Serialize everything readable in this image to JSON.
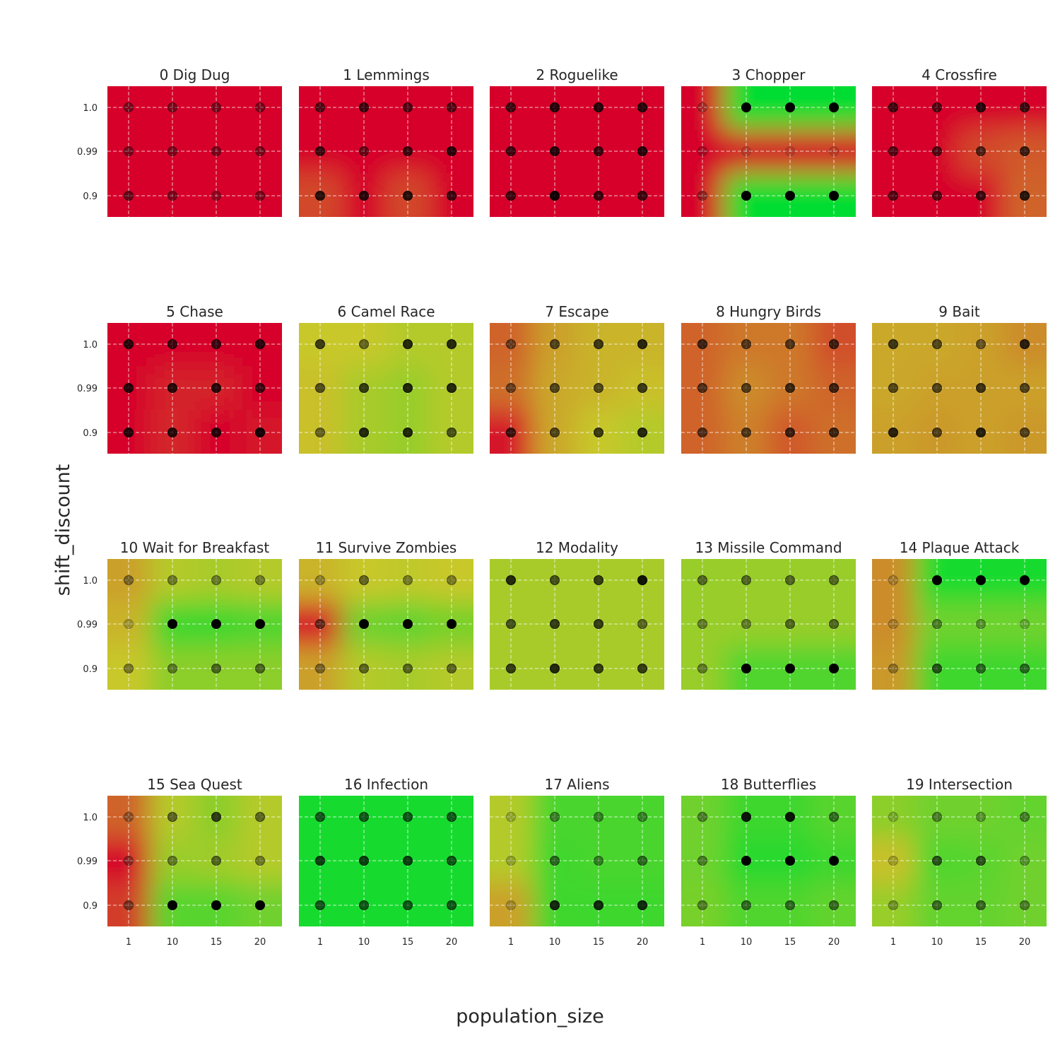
{
  "chart_data": {
    "type": "heatmap",
    "xlabel": "population_size",
    "ylabel": "shift_discount",
    "x_ticks": [
      "1",
      "10",
      "15",
      "20"
    ],
    "y_ticks": [
      "1.0",
      "0.99",
      "0.9"
    ],
    "grid": true,
    "colormap": {
      "low": "#d6002b",
      "mid": "#c8c82a",
      "high": "#00dd30"
    },
    "point_color": "#000000",
    "value_scale": "0 = red (worst) to 1 = green (best)",
    "panels": [
      {
        "title": "0 Dig Dug",
        "values": [
          [
            0.0,
            0.0,
            0.0,
            0.0
          ],
          [
            0.0,
            0.0,
            0.0,
            0.0
          ],
          [
            0.0,
            0.0,
            0.0,
            0.0
          ]
        ],
        "marker_strength": [
          [
            0.4,
            0.4,
            0.4,
            0.4
          ],
          [
            0.4,
            0.4,
            0.4,
            0.4
          ],
          [
            0.5,
            0.4,
            0.3,
            0.4
          ]
        ]
      },
      {
        "title": "1 Lemmings",
        "values": [
          [
            0.0,
            0.0,
            0.0,
            0.0
          ],
          [
            0.0,
            0.0,
            0.0,
            0.0
          ],
          [
            0.18,
            0.0,
            0.18,
            0.0
          ]
        ],
        "marker_strength": [
          [
            0.6,
            0.7,
            0.6,
            0.6
          ],
          [
            0.7,
            0.5,
            0.7,
            0.8
          ],
          [
            0.8,
            0.8,
            0.8,
            0.7
          ]
        ]
      },
      {
        "title": "2 Roguelike",
        "values": [
          [
            0.0,
            0.0,
            0.0,
            0.0
          ],
          [
            0.0,
            0.0,
            0.0,
            0.0
          ],
          [
            0.0,
            0.0,
            0.0,
            0.0
          ]
        ],
        "marker_strength": [
          [
            0.7,
            0.8,
            0.8,
            0.8
          ],
          [
            0.7,
            0.8,
            0.7,
            0.8
          ],
          [
            0.7,
            0.9,
            0.7,
            0.7
          ]
        ]
      },
      {
        "title": "3 Chopper",
        "values": [
          [
            0.0,
            1.0,
            1.0,
            1.0
          ],
          [
            0.0,
            0.0,
            0.0,
            0.0
          ],
          [
            0.0,
            1.0,
            1.0,
            1.0
          ]
        ],
        "marker_strength": [
          [
            0.2,
            1.0,
            1.0,
            1.0
          ],
          [
            0.2,
            0.1,
            0.1,
            0.1
          ],
          [
            0.3,
            1.0,
            1.0,
            1.0
          ]
        ]
      },
      {
        "title": "4 Crossfire",
        "values": [
          [
            0.0,
            0.0,
            0.0,
            0.0
          ],
          [
            0.0,
            0.0,
            0.18,
            0.22
          ],
          [
            0.0,
            0.0,
            0.0,
            0.25
          ]
        ],
        "marker_strength": [
          [
            0.7,
            0.6,
            0.8,
            0.7
          ],
          [
            0.6,
            0.6,
            0.6,
            0.7
          ],
          [
            0.6,
            0.6,
            0.7,
            0.8
          ]
        ]
      },
      {
        "title": "5 Chase",
        "values": [
          [
            0.0,
            0.0,
            0.0,
            0.0
          ],
          [
            0.0,
            0.08,
            0.08,
            0.0
          ],
          [
            0.0,
            0.1,
            0.0,
            0.05
          ]
        ],
        "marker_strength": [
          [
            0.8,
            0.7,
            0.7,
            0.8
          ],
          [
            0.8,
            0.8,
            0.8,
            0.7
          ],
          [
            0.8,
            0.8,
            0.8,
            0.9
          ]
        ]
      },
      {
        "title": "6 Camel Race",
        "values": [
          [
            0.5,
            0.5,
            0.55,
            0.55
          ],
          [
            0.48,
            0.58,
            0.62,
            0.55
          ],
          [
            0.48,
            0.58,
            0.62,
            0.55
          ]
        ],
        "marker_strength": [
          [
            0.7,
            0.5,
            0.8,
            0.8
          ],
          [
            0.6,
            0.7,
            0.8,
            0.8
          ],
          [
            0.5,
            0.8,
            0.8,
            0.6
          ]
        ]
      },
      {
        "title": "7 Escape",
        "values": [
          [
            0.25,
            0.4,
            0.45,
            0.45
          ],
          [
            0.28,
            0.42,
            0.45,
            0.48
          ],
          [
            0.05,
            0.42,
            0.5,
            0.55
          ]
        ],
        "marker_strength": [
          [
            0.5,
            0.6,
            0.7,
            0.8
          ],
          [
            0.5,
            0.6,
            0.6,
            0.7
          ],
          [
            0.7,
            0.6,
            0.7,
            0.8
          ]
        ]
      },
      {
        "title": "8 Hungry Birds",
        "values": [
          [
            0.25,
            0.3,
            0.3,
            0.2
          ],
          [
            0.25,
            0.35,
            0.3,
            0.25
          ],
          [
            0.25,
            0.32,
            0.22,
            0.28
          ]
        ],
        "marker_strength": [
          [
            0.7,
            0.6,
            0.6,
            0.7
          ],
          [
            0.6,
            0.6,
            0.7,
            0.7
          ],
          [
            0.6,
            0.6,
            0.7,
            0.7
          ]
        ]
      },
      {
        "title": "9 Bait",
        "values": [
          [
            0.42,
            0.42,
            0.4,
            0.35
          ],
          [
            0.42,
            0.4,
            0.4,
            0.4
          ],
          [
            0.4,
            0.38,
            0.4,
            0.38
          ]
        ],
        "marker_strength": [
          [
            0.7,
            0.6,
            0.5,
            0.8
          ],
          [
            0.6,
            0.6,
            0.7,
            0.6
          ],
          [
            0.8,
            0.6,
            0.8,
            0.6
          ]
        ]
      },
      {
        "title": "10 Wait for Breakfast",
        "values": [
          [
            0.4,
            0.55,
            0.58,
            0.55
          ],
          [
            0.45,
            0.85,
            0.85,
            0.8
          ],
          [
            0.5,
            0.65,
            0.65,
            0.65
          ]
        ],
        "marker_strength": [
          [
            0.4,
            0.4,
            0.4,
            0.4
          ],
          [
            0.2,
            1.0,
            1.0,
            1.0
          ],
          [
            0.4,
            0.4,
            0.5,
            0.5
          ]
        ]
      },
      {
        "title": "11 Survive Zombies",
        "values": [
          [
            0.45,
            0.5,
            0.52,
            0.5
          ],
          [
            0.05,
            0.72,
            0.75,
            0.7
          ],
          [
            0.4,
            0.55,
            0.58,
            0.55
          ]
        ],
        "marker_strength": [
          [
            0.3,
            0.5,
            0.4,
            0.4
          ],
          [
            0.5,
            1.0,
            1.0,
            1.0
          ],
          [
            0.4,
            0.5,
            0.5,
            0.5
          ]
        ]
      },
      {
        "title": "12 Modality",
        "values": [
          [
            0.58,
            0.58,
            0.58,
            0.58
          ],
          [
            0.58,
            0.58,
            0.58,
            0.58
          ],
          [
            0.58,
            0.58,
            0.58,
            0.58
          ]
        ],
        "marker_strength": [
          [
            0.8,
            0.6,
            0.7,
            0.9
          ],
          [
            0.6,
            0.7,
            0.7,
            0.5
          ],
          [
            0.7,
            0.8,
            0.7,
            0.7
          ]
        ]
      },
      {
        "title": "13 Missile Command",
        "values": [
          [
            0.62,
            0.62,
            0.62,
            0.62
          ],
          [
            0.62,
            0.62,
            0.62,
            0.62
          ],
          [
            0.62,
            0.8,
            0.8,
            0.8
          ]
        ],
        "marker_strength": [
          [
            0.5,
            0.5,
            0.5,
            0.5
          ],
          [
            0.4,
            0.4,
            0.5,
            0.5
          ],
          [
            0.4,
            1.0,
            1.0,
            1.0
          ]
        ]
      },
      {
        "title": "14 Plaque Attack",
        "values": [
          [
            0.35,
            0.95,
            0.95,
            0.95
          ],
          [
            0.35,
            0.72,
            0.72,
            0.72
          ],
          [
            0.38,
            0.85,
            0.85,
            0.85
          ]
        ],
        "marker_strength": [
          [
            0.2,
            1.0,
            1.0,
            1.0
          ],
          [
            0.2,
            0.4,
            0.3,
            0.2
          ],
          [
            0.3,
            0.6,
            0.5,
            0.5
          ]
        ]
      },
      {
        "title": "15 Sea Quest",
        "values": [
          [
            0.25,
            0.55,
            0.65,
            0.55
          ],
          [
            0.0,
            0.62,
            0.6,
            0.55
          ],
          [
            0.15,
            0.78,
            0.78,
            0.72
          ]
        ],
        "marker_strength": [
          [
            0.3,
            0.5,
            0.7,
            0.5
          ],
          [
            0.3,
            0.4,
            0.5,
            0.4
          ],
          [
            0.4,
            1.0,
            1.0,
            1.0
          ]
        ]
      },
      {
        "title": "16 Infection",
        "values": [
          [
            0.95,
            0.95,
            0.95,
            0.95
          ],
          [
            0.95,
            0.95,
            0.95,
            0.95
          ],
          [
            0.95,
            0.95,
            0.95,
            0.95
          ]
        ],
        "marker_strength": [
          [
            0.6,
            0.6,
            0.6,
            0.6
          ],
          [
            0.7,
            0.7,
            0.7,
            0.6
          ],
          [
            0.6,
            0.6,
            0.6,
            0.6
          ]
        ]
      },
      {
        "title": "17 Aliens",
        "values": [
          [
            0.55,
            0.82,
            0.82,
            0.82
          ],
          [
            0.55,
            0.85,
            0.82,
            0.82
          ],
          [
            0.4,
            0.85,
            0.85,
            0.85
          ]
        ],
        "marker_strength": [
          [
            0.2,
            0.4,
            0.4,
            0.4
          ],
          [
            0.2,
            0.5,
            0.4,
            0.5
          ],
          [
            0.2,
            0.8,
            0.8,
            0.8
          ]
        ]
      },
      {
        "title": "18 Butterflies",
        "values": [
          [
            0.72,
            0.85,
            0.85,
            0.78
          ],
          [
            0.72,
            0.9,
            0.9,
            0.85
          ],
          [
            0.7,
            0.8,
            0.8,
            0.75
          ]
        ],
        "marker_strength": [
          [
            0.4,
            0.9,
            0.9,
            0.5
          ],
          [
            0.4,
            1.0,
            1.0,
            1.0
          ],
          [
            0.4,
            0.5,
            0.5,
            0.5
          ]
        ]
      },
      {
        "title": "19 Intersection",
        "values": [
          [
            0.65,
            0.72,
            0.72,
            0.75
          ],
          [
            0.48,
            0.8,
            0.78,
            0.72
          ],
          [
            0.62,
            0.75,
            0.75,
            0.72
          ]
        ],
        "marker_strength": [
          [
            0.2,
            0.4,
            0.3,
            0.4
          ],
          [
            0.2,
            0.6,
            0.6,
            0.3
          ],
          [
            0.3,
            0.5,
            0.5,
            0.4
          ]
        ]
      }
    ]
  }
}
